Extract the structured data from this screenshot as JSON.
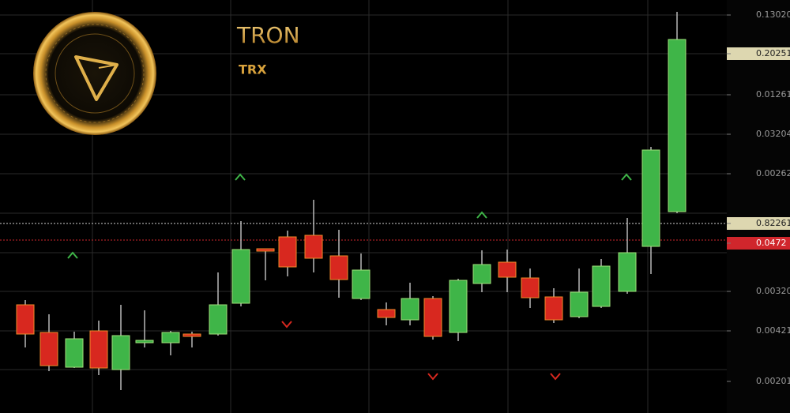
{
  "header": {
    "title": "TRON",
    "subtitle": "TRX"
  },
  "axis_labels": [
    "0.13020",
    "0.20251",
    "0.01261",
    "0.03204",
    "0.00262",
    "0.82261",
    "0.0472",
    "0.00320",
    "0.00421",
    "0.00201"
  ]
}
